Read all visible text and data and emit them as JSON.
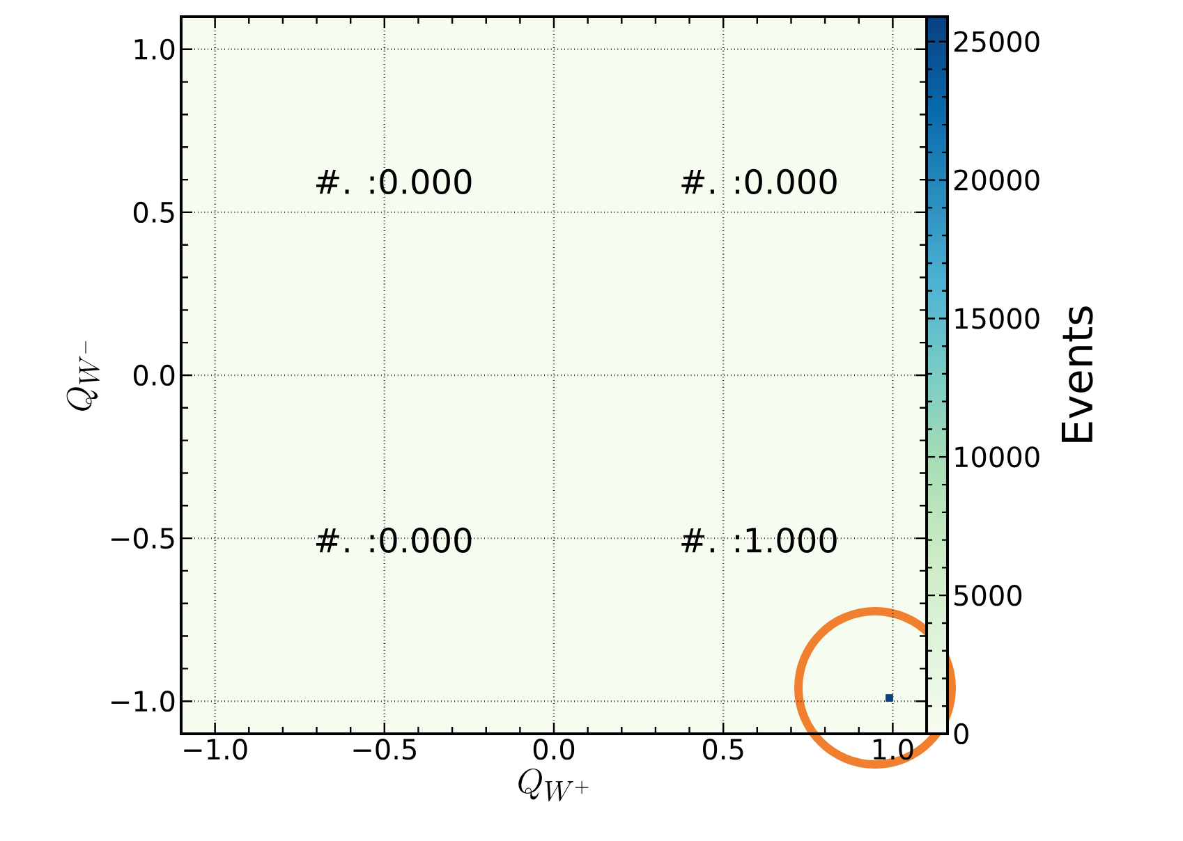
{
  "chart_data": {
    "type": "scatter",
    "xlabel": "Q_{W^+}",
    "ylabel": "Q_{W^-}",
    "clabel": "Events",
    "x": [
      0.99
    ],
    "values": [
      -0.99
    ],
    "cvalues": [
      25900
    ],
    "clim": [
      0,
      25900
    ],
    "cticks": [
      0,
      5000,
      10000,
      15000,
      20000,
      25000
    ],
    "xlim": [
      -1.1,
      1.1
    ],
    "ylim": [
      -1.1,
      1.1
    ],
    "xticks": [
      {
        "value": -1.0,
        "label": "−1.0"
      },
      {
        "value": -0.5,
        "label": "−0.5"
      },
      {
        "value": 0,
        "label": "0.0"
      },
      {
        "value": 0.5,
        "label": "0.5"
      },
      {
        "value": 1.0,
        "label": "1.0"
      }
    ],
    "yticks": [
      {
        "value": -1.0,
        "label": "−1.0"
      },
      {
        "value": -0.5,
        "label": "−0.5"
      },
      {
        "value": 0,
        "label": "0.0"
      },
      {
        "value": 0.5,
        "label": "0.5"
      },
      {
        "value": 1.0,
        "label": "1.0"
      }
    ],
    "grid": true,
    "marker": "square",
    "annotations": [
      "#. :0.000",
      "#. :0.000",
      "#. :0.000",
      "#. :1.000"
    ]
  }
}
